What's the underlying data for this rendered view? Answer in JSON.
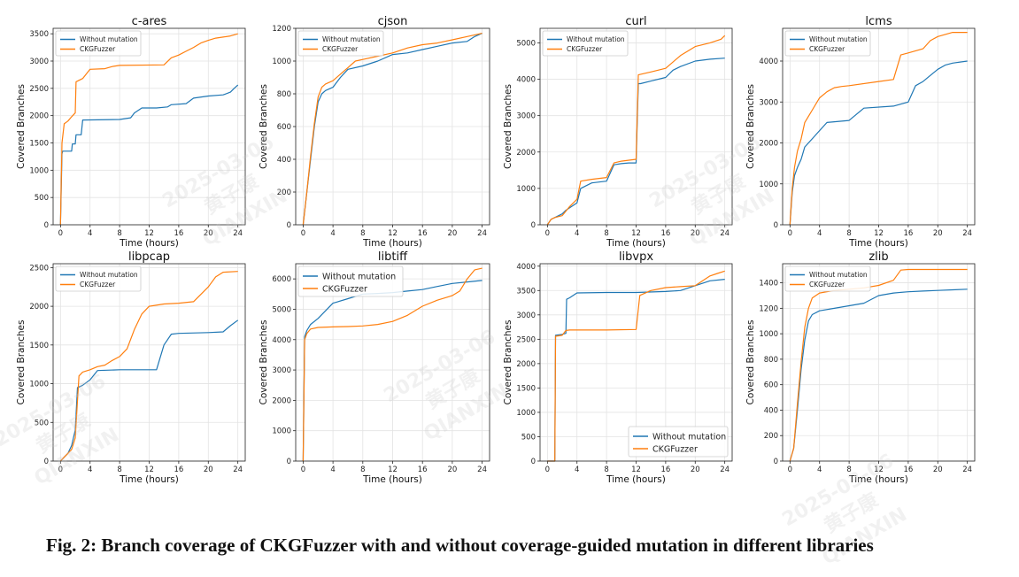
{
  "caption": "Fig. 2: Branch coverage of CKGFuzzer with and without coverage-guided mutation in different libraries",
  "watermark": {
    "lines": [
      "2025-03-06",
      "黄子康",
      "QIANXIN"
    ]
  },
  "colors": {
    "without": "#1f77b4",
    "ckg": "#ff7f0e",
    "grid": "#e3e3e3",
    "axis": "#222222"
  },
  "chart_data": [
    {
      "type": "line",
      "title": "c-ares",
      "xlabel": "Time (hours)",
      "ylabel": "Covered Branches",
      "xlim": [
        -1,
        25
      ],
      "ylim": [
        0,
        3600
      ],
      "xticks": [
        0,
        4,
        8,
        12,
        16,
        20,
        24
      ],
      "yticks": [
        0,
        500,
        1000,
        1500,
        2000,
        2500,
        3000,
        3500
      ],
      "grid": true,
      "legend": "top-left",
      "series": [
        {
          "name": "Without mutation",
          "x": [
            0,
            0.2,
            0.3,
            1.5,
            1.6,
            2.0,
            2.1,
            2.8,
            3.0,
            8.0,
            9.5,
            10.0,
            11.0,
            13.0,
            14.5,
            15.0,
            17.0,
            18.0,
            20.0,
            22.0,
            23.0,
            23.5,
            24.0
          ],
          "y": [
            0,
            1300,
            1350,
            1350,
            1480,
            1480,
            1650,
            1650,
            1920,
            1930,
            1960,
            2050,
            2140,
            2140,
            2160,
            2200,
            2220,
            2320,
            2360,
            2380,
            2430,
            2500,
            2560
          ]
        },
        {
          "name": "CKGFuzzer",
          "x": [
            0,
            0.2,
            0.5,
            1.0,
            1.5,
            2.0,
            2.1,
            3.0,
            4.0,
            6.0,
            7.0,
            8.0,
            14.0,
            15.0,
            16.0,
            17.0,
            18.0,
            19.0,
            20.0,
            21.0,
            22.0,
            23.0,
            24.0
          ],
          "y": [
            0,
            1500,
            1850,
            1900,
            1980,
            2050,
            2620,
            2680,
            2850,
            2860,
            2900,
            2920,
            2930,
            3060,
            3110,
            3180,
            3250,
            3330,
            3380,
            3420,
            3440,
            3460,
            3500
          ]
        }
      ]
    },
    {
      "type": "line",
      "title": "cjson",
      "xlabel": "Time (hours)",
      "ylabel": "Covered Branches",
      "xlim": [
        -1,
        25
      ],
      "ylim": [
        0,
        1200
      ],
      "xticks": [
        0,
        4,
        8,
        12,
        16,
        20,
        24
      ],
      "yticks": [
        0,
        200,
        400,
        600,
        800,
        1000,
        1200
      ],
      "grid": true,
      "legend": "top-left",
      "series": [
        {
          "name": "Without mutation",
          "x": [
            0,
            0.5,
            1.0,
            1.5,
            2.0,
            2.5,
            3.0,
            4.0,
            5.0,
            6.0,
            8.0,
            10.0,
            12.0,
            14.0,
            16.0,
            18.0,
            20.0,
            22.0,
            23.0,
            24.0
          ],
          "y": [
            0,
            200,
            400,
            600,
            750,
            800,
            820,
            840,
            900,
            950,
            970,
            1000,
            1040,
            1050,
            1070,
            1090,
            1110,
            1120,
            1150,
            1170
          ]
        },
        {
          "name": "CKGFuzzer",
          "x": [
            0,
            0.5,
            1.0,
            1.5,
            2.0,
            2.5,
            3.0,
            4.0,
            5.0,
            6.0,
            7.0,
            8.0,
            10.0,
            12.0,
            14.0,
            16.0,
            18.0,
            20.0,
            22.0,
            23.0,
            24.0
          ],
          "y": [
            0,
            200,
            420,
            620,
            780,
            840,
            860,
            880,
            920,
            960,
            1000,
            1010,
            1030,
            1050,
            1080,
            1100,
            1110,
            1130,
            1150,
            1160,
            1170
          ]
        }
      ]
    },
    {
      "type": "line",
      "title": "curl",
      "xlabel": "Time (hours)",
      "ylabel": "Covered Branches",
      "xlim": [
        -1,
        25
      ],
      "ylim": [
        0,
        5400
      ],
      "xticks": [
        0,
        4,
        8,
        12,
        16,
        20,
        24
      ],
      "yticks": [
        0,
        1000,
        2000,
        3000,
        4000,
        5000
      ],
      "grid": true,
      "legend": "top-left",
      "series": [
        {
          "name": "Without mutation",
          "x": [
            0,
            0.5,
            1.0,
            2.0,
            2.5,
            4.0,
            4.5,
            6.0,
            8.0,
            9.0,
            10.0,
            11.0,
            12.0,
            12.3,
            12.6,
            14.0,
            16.0,
            17.0,
            18.0,
            20.0,
            22.0,
            24.0
          ],
          "y": [
            0,
            150,
            200,
            300,
            400,
            600,
            1000,
            1150,
            1200,
            1650,
            1680,
            1700,
            1700,
            3880,
            3880,
            3950,
            4050,
            4250,
            4350,
            4500,
            4550,
            4580
          ]
        },
        {
          "name": "CKGFuzzer",
          "x": [
            0,
            0.5,
            1.0,
            2.0,
            3.0,
            4.0,
            4.5,
            6.0,
            8.0,
            9.0,
            10.0,
            12.0,
            12.3,
            14.0,
            16.0,
            18.0,
            20.0,
            22.0,
            23.5,
            24.0
          ],
          "y": [
            0,
            150,
            200,
            250,
            500,
            700,
            1200,
            1250,
            1300,
            1700,
            1750,
            1800,
            4120,
            4200,
            4300,
            4650,
            4900,
            5000,
            5100,
            5200
          ]
        }
      ]
    },
    {
      "type": "line",
      "title": "lcms",
      "xlabel": "Time (hours)",
      "ylabel": "Covered Branches",
      "xlim": [
        -1,
        25
      ],
      "ylim": [
        0,
        4800
      ],
      "xticks": [
        0,
        4,
        8,
        12,
        16,
        20,
        24
      ],
      "yticks": [
        0,
        1000,
        2000,
        3000,
        4000
      ],
      "grid": true,
      "legend": "top-left",
      "series": [
        {
          "name": "Without mutation",
          "x": [
            0,
            0.3,
            0.6,
            1.0,
            1.5,
            2.0,
            3.0,
            4.0,
            5.0,
            8.0,
            9.0,
            10.0,
            14.0,
            16.0,
            17.0,
            18.0,
            19.0,
            20.0,
            21.0,
            22.0,
            24.0
          ],
          "y": [
            0,
            800,
            1200,
            1400,
            1600,
            1900,
            2100,
            2300,
            2500,
            2550,
            2700,
            2850,
            2900,
            3000,
            3400,
            3500,
            3650,
            3800,
            3900,
            3950,
            4000
          ]
        },
        {
          "name": "CKGFuzzer",
          "x": [
            0,
            0.3,
            0.6,
            1.0,
            1.5,
            2.0,
            3.0,
            4.0,
            5.0,
            6.0,
            7.0,
            8.0,
            12.0,
            14.0,
            15.0,
            16.0,
            18.0,
            19.0,
            20.0,
            22.0,
            24.0
          ],
          "y": [
            0,
            900,
            1400,
            1800,
            2100,
            2500,
            2800,
            3100,
            3250,
            3350,
            3380,
            3400,
            3500,
            3550,
            4150,
            4200,
            4300,
            4500,
            4600,
            4700,
            4700
          ]
        }
      ]
    },
    {
      "type": "line",
      "title": "libpcap",
      "xlabel": "Time (hours)",
      "ylabel": "Covered Branches",
      "xlim": [
        -1,
        25
      ],
      "ylim": [
        0,
        2550
      ],
      "xticks": [
        0,
        4,
        8,
        12,
        16,
        20,
        24
      ],
      "yticks": [
        0,
        500,
        1000,
        1500,
        2000,
        2500
      ],
      "grid": true,
      "legend": "top-left",
      "series": [
        {
          "name": "Without mutation",
          "x": [
            0,
            0.5,
            1.0,
            1.5,
            2.0,
            2.3,
            2.6,
            3.0,
            4.0,
            5.0,
            8.0,
            10.0,
            13.0,
            14.0,
            15.0,
            16.0,
            20.0,
            22.0,
            23.0,
            24.0
          ],
          "y": [
            0,
            50,
            100,
            200,
            400,
            950,
            960,
            980,
            1050,
            1170,
            1180,
            1180,
            1180,
            1500,
            1640,
            1650,
            1660,
            1670,
            1750,
            1820
          ]
        },
        {
          "name": "CKGFuzzer",
          "x": [
            0,
            0.5,
            1.0,
            1.5,
            2.0,
            2.5,
            3.0,
            4.0,
            5.0,
            6.0,
            7.0,
            8.0,
            9.0,
            10.0,
            11.0,
            12.0,
            14.0,
            16.0,
            18.0,
            20.0,
            21.0,
            22.0,
            24.0
          ],
          "y": [
            0,
            50,
            100,
            150,
            300,
            1100,
            1150,
            1180,
            1220,
            1240,
            1300,
            1350,
            1450,
            1700,
            1900,
            2000,
            2030,
            2040,
            2060,
            2250,
            2380,
            2440,
            2450
          ]
        }
      ]
    },
    {
      "type": "line",
      "title": "libtiff",
      "xlabel": "Time (hours)",
      "ylabel": "Covered Branches",
      "xlim": [
        -1,
        25
      ],
      "ylim": [
        0,
        6500
      ],
      "xticks": [
        0,
        4,
        8,
        12,
        16,
        20,
        24
      ],
      "yticks": [
        0,
        1000,
        2000,
        3000,
        4000,
        5000,
        6000
      ],
      "grid": true,
      "legend": "top-left",
      "series": [
        {
          "name": "Without mutation",
          "x": [
            0,
            0.2,
            0.5,
            1.0,
            2.0,
            3.0,
            4.0,
            6.0,
            8.0,
            10.0,
            12.0,
            14.0,
            16.0,
            18.0,
            20.0,
            22.0,
            24.0
          ],
          "y": [
            0,
            4100,
            4300,
            4500,
            4700,
            4950,
            5200,
            5350,
            5500,
            5520,
            5550,
            5600,
            5650,
            5750,
            5850,
            5900,
            5950
          ]
        },
        {
          "name": "CKGFuzzer",
          "x": [
            0,
            0.2,
            0.5,
            1.0,
            2.0,
            4.0,
            6.0,
            8.0,
            10.0,
            12.0,
            14.0,
            16.0,
            18.0,
            20.0,
            21.0,
            22.0,
            23.0,
            24.0
          ],
          "y": [
            0,
            4000,
            4200,
            4350,
            4400,
            4420,
            4430,
            4450,
            4500,
            4600,
            4800,
            5100,
            5300,
            5450,
            5600,
            6000,
            6300,
            6350
          ]
        }
      ]
    },
    {
      "type": "line",
      "title": "libvpx",
      "xlabel": "Time (hours)",
      "ylabel": "Covered Branches",
      "xlim": [
        -1,
        25
      ],
      "ylim": [
        0,
        4050
      ],
      "xticks": [
        0,
        4,
        8,
        12,
        16,
        20,
        24
      ],
      "yticks": [
        0,
        500,
        1000,
        1500,
        2000,
        2500,
        3000,
        3500,
        4000
      ],
      "grid": true,
      "legend": "bottom-right",
      "series": [
        {
          "name": "Without mutation",
          "x": [
            0,
            0.5,
            1.0,
            1.1,
            2.0,
            2.5,
            2.6,
            3.0,
            4.0,
            8.0,
            12.0,
            16.0,
            18.0,
            20.0,
            22.0,
            24.0
          ],
          "y": [
            0,
            0,
            0,
            2580,
            2600,
            2620,
            3320,
            3350,
            3450,
            3460,
            3460,
            3480,
            3500,
            3600,
            3700,
            3730
          ]
        },
        {
          "name": "CKGFuzzer",
          "x": [
            0,
            0.5,
            1.0,
            1.1,
            2.0,
            2.5,
            3.0,
            4.0,
            8.0,
            12.0,
            12.5,
            14.0,
            16.0,
            18.0,
            20.0,
            22.0,
            23.0,
            24.0
          ],
          "y": [
            0,
            0,
            0,
            2560,
            2580,
            2680,
            2690,
            2690,
            2690,
            2700,
            3400,
            3500,
            3560,
            3580,
            3600,
            3800,
            3850,
            3900
          ]
        }
      ]
    },
    {
      "type": "line",
      "title": "zlib",
      "xlabel": "Time (hours)",
      "ylabel": "Covered Branches",
      "xlim": [
        -1,
        25
      ],
      "ylim": [
        0,
        1550
      ],
      "xticks": [
        0,
        4,
        8,
        12,
        16,
        20,
        24
      ],
      "yticks": [
        0,
        200,
        400,
        600,
        800,
        1000,
        1200,
        1400
      ],
      "grid": true,
      "legend": "top-left",
      "series": [
        {
          "name": "Without mutation",
          "x": [
            0,
            0.5,
            1.0,
            1.5,
            2.0,
            2.5,
            3.0,
            4.0,
            6.0,
            8.0,
            10.0,
            12.0,
            14.0,
            16.0,
            18.0,
            20.0,
            22.0,
            24.0
          ],
          "y": [
            0,
            100,
            400,
            720,
            950,
            1100,
            1150,
            1180,
            1200,
            1220,
            1240,
            1300,
            1320,
            1330,
            1335,
            1340,
            1345,
            1350
          ]
        },
        {
          "name": "CKGFuzzer",
          "x": [
            0,
            0.5,
            1.0,
            1.5,
            2.0,
            2.5,
            3.0,
            4.0,
            6.0,
            8.0,
            10.0,
            12.0,
            14.0,
            15.0,
            16.0,
            18.0,
            20.0,
            24.0
          ],
          "y": [
            0,
            100,
            450,
            780,
            1050,
            1200,
            1280,
            1320,
            1340,
            1350,
            1360,
            1380,
            1420,
            1500,
            1505,
            1505,
            1505,
            1505
          ]
        }
      ]
    }
  ]
}
